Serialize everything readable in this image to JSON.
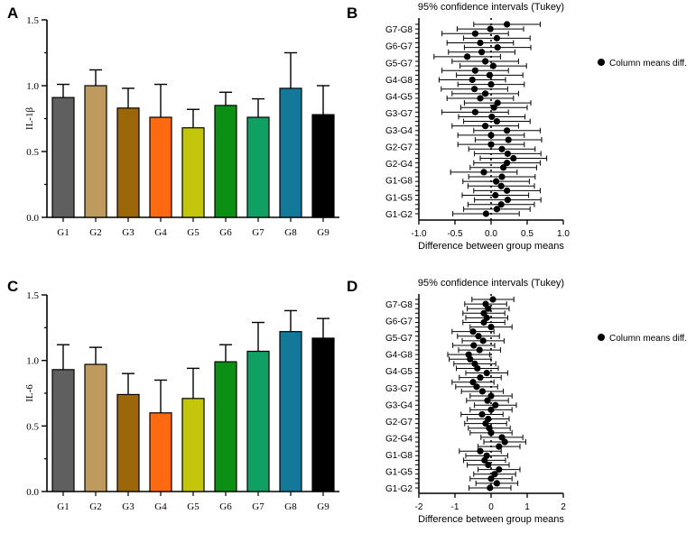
{
  "bar_colors": [
    "#5f5f5f",
    "#bf9a5e",
    "#9b6708",
    "#ff6a10",
    "#c4c60b",
    "#0c8f15",
    "#10a063",
    "#13799a",
    "#000000"
  ],
  "chart_data": [
    {
      "panel": "A",
      "type": "bar",
      "ylabel": "IL-1β",
      "categories": [
        "G1",
        "G2",
        "G3",
        "G4",
        "G5",
        "G6",
        "G7",
        "G8",
        "G9"
      ],
      "values": [
        0.91,
        1.0,
        0.83,
        0.76,
        0.68,
        0.85,
        0.76,
        0.98,
        0.78
      ],
      "errors": [
        0.1,
        0.12,
        0.15,
        0.25,
        0.14,
        0.1,
        0.14,
        0.27,
        0.22
      ],
      "ylim": [
        0,
        1.5
      ],
      "yticks": [
        "0.0",
        "0.5",
        "1.0",
        "1.5"
      ],
      "yminor": [
        0.25,
        0.75,
        1.25
      ]
    },
    {
      "panel": "B",
      "type": "scatter",
      "title": "95% confidence intervals (Tukey)",
      "xlabel": "Difference between group means",
      "legend": "Column means diff.",
      "xlim": [
        -1.0,
        1.0
      ],
      "xticks": [
        "-1.0",
        "-0.5",
        "0.0",
        "0.5",
        "1.0"
      ],
      "labels": [
        "G7-G8",
        "G6-G7",
        "G5-G7",
        "G4-G8",
        "G4-G5",
        "G3-G7",
        "G3-G4",
        "G2-G7",
        "G2-G4",
        "G1-G8",
        "G1-G5",
        "G1-G2"
      ],
      "means": [
        0.22,
        -0.01,
        -0.22,
        0.08,
        -0.15,
        0.09,
        -0.13,
        -0.33,
        -0.08,
        0.03,
        -0.22,
        -0.02,
        -0.26,
        0.0,
        -0.23,
        -0.08,
        -0.15,
        0.09,
        0.04,
        -0.22,
        0.01,
        0.08,
        -0.08,
        0.22,
        0.0,
        0.24,
        0.0,
        0.15,
        0.23,
        0.31,
        0.22,
        0.17,
        -0.1,
        0.15,
        0.07,
        0.14,
        0.22,
        0.06,
        0.23,
        0.14,
        0.08,
        -0.07
      ],
      "half_widths": [
        0.46,
        0.46,
        0.46,
        0.46,
        0.46,
        0.46,
        0.46,
        0.46,
        0.46,
        0.46,
        0.46,
        0.46,
        0.46,
        0.46,
        0.46,
        0.46,
        0.46,
        0.46,
        0.46,
        0.46,
        0.46,
        0.46,
        0.46,
        0.46,
        0.46,
        0.46,
        0.46,
        0.46,
        0.46,
        0.46,
        0.46,
        0.46,
        0.46,
        0.46,
        0.46,
        0.46,
        0.46,
        0.46,
        0.46,
        0.46,
        0.46,
        0.46
      ]
    },
    {
      "panel": "C",
      "type": "bar",
      "ylabel": "IL-6",
      "categories": [
        "G1",
        "G2",
        "G3",
        "G4",
        "G5",
        "G6",
        "G7",
        "G8",
        "G9"
      ],
      "values": [
        0.93,
        0.97,
        0.74,
        0.6,
        0.71,
        0.99,
        1.07,
        1.22,
        1.17
      ],
      "errors": [
        0.19,
        0.13,
        0.16,
        0.25,
        0.23,
        0.13,
        0.22,
        0.16,
        0.15
      ],
      "ylim": [
        0,
        1.5
      ],
      "yticks": [
        "0.0",
        "0.5",
        "1.0",
        "1.5"
      ],
      "yminor": [
        0.25,
        0.75,
        1.25
      ]
    },
    {
      "panel": "D",
      "type": "scatter",
      "title": "95% confidence intervals (Tukey)",
      "xlabel": "Difference between group means",
      "legend": "Column means diff.",
      "xlim": [
        -2,
        2
      ],
      "xticks": [
        "-2",
        "-1",
        "0",
        "1",
        "2"
      ],
      "labels": [
        "G7-G8",
        "G6-G7",
        "G5-G7",
        "G4-G8",
        "G4-G5",
        "G3-G7",
        "G3-G4",
        "G2-G7",
        "G2-G4",
        "G1-G8",
        "G1-G5",
        "G1-G2"
      ],
      "means": [
        0.05,
        -0.15,
        -0.08,
        -0.2,
        -0.12,
        -0.2,
        0.0,
        -0.5,
        -0.35,
        -0.22,
        -0.48,
        -0.32,
        -0.62,
        -0.58,
        -0.45,
        -0.38,
        -0.12,
        -0.3,
        -0.5,
        -0.4,
        -0.24,
        0.0,
        -0.1,
        0.12,
        0.0,
        -0.25,
        -0.08,
        -0.15,
        -0.05,
        0.0,
        0.3,
        0.38,
        0.22,
        -0.3,
        -0.12,
        -0.18,
        -0.08,
        0.22,
        0.1,
        0.0,
        0.16,
        -0.03
      ],
      "half_widths": [
        0.58,
        0.58,
        0.58,
        0.58,
        0.58,
        0.58,
        0.58,
        0.58,
        0.58,
        0.58,
        0.58,
        0.58,
        0.58,
        0.58,
        0.58,
        0.58,
        0.58,
        0.58,
        0.58,
        0.58,
        0.58,
        0.58,
        0.58,
        0.58,
        0.58,
        0.58,
        0.58,
        0.58,
        0.58,
        0.58,
        0.58,
        0.58,
        0.58,
        0.58,
        0.58,
        0.58,
        0.58,
        0.58,
        0.58,
        0.58,
        0.58,
        0.58
      ]
    }
  ]
}
